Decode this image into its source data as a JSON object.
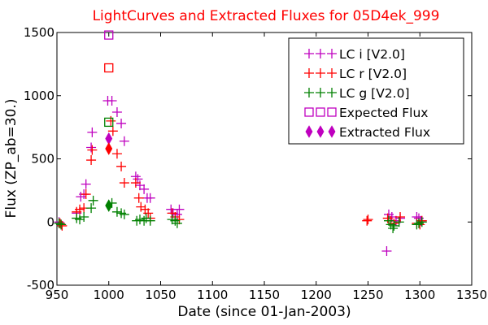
{
  "chart_data": {
    "type": "scatter",
    "title": "LightCurves and Extracted Fluxes for 05D4ek_999",
    "xlabel": "Date (since 01-Jan-2003)",
    "ylabel": "Flux (ZP_ab=30.)",
    "xlim": [
      950,
      1350
    ],
    "ylim": [
      -500,
      1500
    ],
    "xticks": [
      "950",
      "1000",
      "1050",
      "1100",
      "1150",
      "1200",
      "1250",
      "1300",
      "1350"
    ],
    "yticks": [
      "-500",
      "0",
      "500",
      "1000",
      "1500"
    ],
    "legend_position": "top-right",
    "series": [
      {
        "name": "LC i [V2.0]",
        "marker": "plus",
        "color": "#bf00bf",
        "points": [
          [
            952,
            0
          ],
          [
            954,
            -20
          ],
          [
            969,
            70
          ],
          [
            973,
            200
          ],
          [
            976,
            220
          ],
          [
            978,
            300
          ],
          [
            983,
            590
          ],
          [
            984,
            710
          ],
          [
            999,
            960
          ],
          [
            1003,
            960
          ],
          [
            1008,
            870
          ],
          [
            1012,
            780
          ],
          [
            1015,
            640
          ],
          [
            1026,
            360
          ],
          [
            1028,
            340
          ],
          [
            1030,
            290
          ],
          [
            1034,
            260
          ],
          [
            1037,
            190
          ],
          [
            1040,
            190
          ],
          [
            1060,
            100
          ],
          [
            1062,
            70
          ],
          [
            1066,
            60
          ],
          [
            1068,
            100
          ],
          [
            1268,
            -230
          ],
          [
            1270,
            60
          ],
          [
            1273,
            40
          ],
          [
            1277,
            10
          ],
          [
            1281,
            30
          ],
          [
            1297,
            40
          ],
          [
            1299,
            30
          ],
          [
            1301,
            10
          ]
        ]
      },
      {
        "name": "LC r [V2.0]",
        "marker": "plus",
        "color": "#ff0000",
        "points": [
          [
            953,
            -10
          ],
          [
            955,
            -30
          ],
          [
            969,
            80
          ],
          [
            972,
            100
          ],
          [
            976,
            110
          ],
          [
            978,
            220
          ],
          [
            983,
            490
          ],
          [
            984,
            570
          ],
          [
            1002,
            800
          ],
          [
            1004,
            720
          ],
          [
            1008,
            540
          ],
          [
            1012,
            440
          ],
          [
            1015,
            310
          ],
          [
            1026,
            310
          ],
          [
            1029,
            190
          ],
          [
            1031,
            120
          ],
          [
            1035,
            100
          ],
          [
            1038,
            70
          ],
          [
            1040,
            30
          ],
          [
            1061,
            70
          ],
          [
            1064,
            40
          ],
          [
            1068,
            20
          ],
          [
            1249,
            10
          ],
          [
            1250,
            20
          ],
          [
            1269,
            30
          ],
          [
            1272,
            10
          ],
          [
            1275,
            -10
          ],
          [
            1281,
            40
          ],
          [
            1297,
            -10
          ],
          [
            1300,
            -20
          ],
          [
            1302,
            10
          ]
        ]
      },
      {
        "name": "LC g [V2.0]",
        "marker": "plus",
        "color": "#008000",
        "points": [
          [
            952,
            -10
          ],
          [
            954,
            -20
          ],
          [
            969,
            30
          ],
          [
            972,
            20
          ],
          [
            976,
            40
          ],
          [
            983,
            110
          ],
          [
            985,
            170
          ],
          [
            1003,
            150
          ],
          [
            1008,
            80
          ],
          [
            1012,
            70
          ],
          [
            1015,
            60
          ],
          [
            1027,
            10
          ],
          [
            1030,
            20
          ],
          [
            1034,
            10
          ],
          [
            1036,
            30
          ],
          [
            1040,
            10
          ],
          [
            1061,
            20
          ],
          [
            1064,
            10
          ],
          [
            1066,
            -10
          ],
          [
            1270,
            10
          ],
          [
            1272,
            -20
          ],
          [
            1274,
            -50
          ],
          [
            1275,
            -30
          ],
          [
            1280,
            0
          ],
          [
            1297,
            -20
          ],
          [
            1299,
            -10
          ],
          [
            1302,
            0
          ]
        ]
      },
      {
        "name": "Expected Flux",
        "marker": "square",
        "color": "#bf00bf",
        "points": [
          [
            1000,
            1480
          ],
          [
            1000,
            1220
          ],
          [
            1000,
            790
          ]
        ],
        "point_colors": [
          "#bf00bf",
          "#ff0000",
          "#008000"
        ]
      },
      {
        "name": "Extracted Flux",
        "marker": "diamond",
        "color": "#bf00bf",
        "points": [
          [
            1000,
            660
          ],
          [
            1000,
            580
          ],
          [
            1000,
            130
          ]
        ],
        "point_colors": [
          "#bf00bf",
          "#ff0000",
          "#008000"
        ]
      }
    ]
  }
}
